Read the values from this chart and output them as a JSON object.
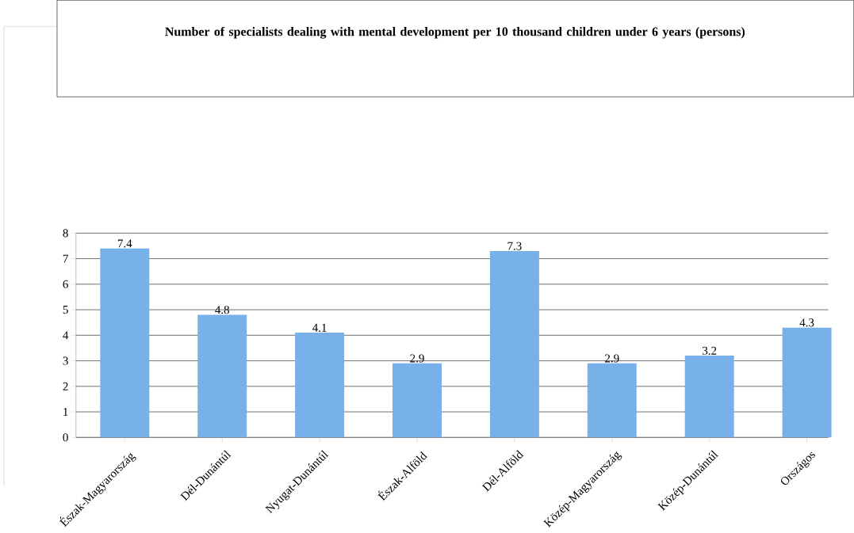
{
  "chart_data": {
    "type": "bar",
    "title": "Number of specialists dealing with mental development per 10 thousand children under 6 years (persons)",
    "categories": [
      "Észak-Magyarország",
      "Dél-Dunántúl",
      "Nyugat-Dunántúl",
      "Észak-Alföld",
      "Dél-Alföld",
      "Közép-Magyarország",
      "Közép-Dunántúl",
      "Országos"
    ],
    "values": [
      7.4,
      4.8,
      4.1,
      2.9,
      7.3,
      2.9,
      3.2,
      4.3
    ],
    "color": "#78b0ea",
    "ylim": [
      0,
      8
    ],
    "yticks": [
      0,
      1,
      2,
      3,
      4,
      5,
      6,
      7,
      8
    ],
    "grid": "y",
    "data_labels": true
  }
}
